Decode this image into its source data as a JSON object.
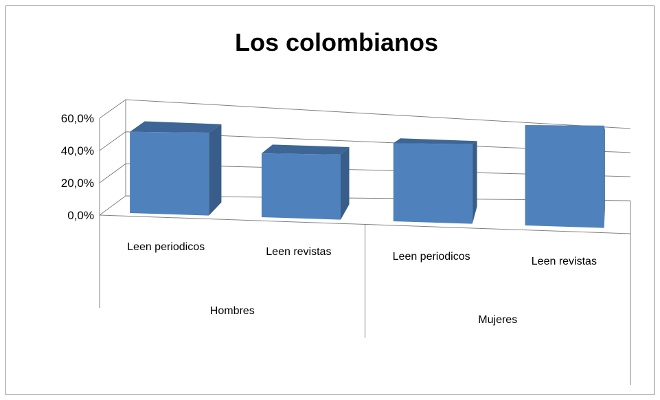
{
  "chart_data": {
    "type": "bar3d",
    "title": "Los colombianos",
    "categories": [
      "Leen periodicos",
      "Leen revistas",
      "Leen periodicos",
      "Leen revistas"
    ],
    "groups": [
      "Hombres",
      "Mujeres"
    ],
    "values": [
      50,
      38,
      45,
      56
    ],
    "color": "#4f81bd",
    "ylim": [
      0,
      60
    ],
    "yticks": [
      {
        "value": 0,
        "label": "0,0%"
      },
      {
        "value": 20,
        "label": "20,0%"
      },
      {
        "value": 40,
        "label": "40,0%"
      },
      {
        "value": 60,
        "label": "60,0%"
      }
    ],
    "grid": true
  }
}
